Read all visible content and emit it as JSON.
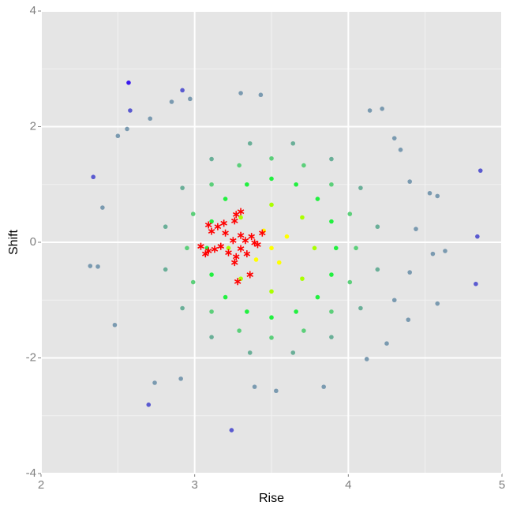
{
  "chart_data": {
    "type": "scatter",
    "xlabel": "Rise",
    "ylabel": "Shift",
    "xlim": [
      2,
      5
    ],
    "ylim": [
      -4,
      4
    ],
    "xticks": [
      2,
      3,
      4,
      5
    ],
    "yticks": [
      -4,
      -2,
      0,
      2,
      4
    ],
    "xminor": [
      2.5,
      3.5,
      4.5
    ],
    "yminor": [
      -3,
      -1,
      1,
      3
    ],
    "grid": true,
    "series": [
      {
        "color": "#7a9ab0",
        "marker": "circle",
        "x": [
          2.85,
          2.97,
          2.5,
          2.56,
          2.71,
          3.3,
          3.43,
          4.14,
          4.22,
          4.53,
          4.58,
          4.63,
          4.55,
          4.58,
          4.39,
          4.25,
          4.12,
          3.84,
          3.39,
          2.74,
          2.48,
          2.4,
          4.3,
          4.34,
          4.4,
          4.44,
          4.4,
          4.3,
          2.91,
          3.53,
          2.37,
          2.32
        ],
        "y": [
          2.43,
          2.48,
          1.84,
          1.96,
          2.14,
          2.58,
          2.55,
          2.28,
          2.31,
          0.85,
          0.8,
          -0.15,
          -0.2,
          -1.06,
          -1.34,
          -1.75,
          -2.02,
          -2.5,
          -2.5,
          -2.43,
          -1.43,
          0.6,
          1.8,
          1.6,
          1.05,
          0.23,
          -0.52,
          -1.0,
          -2.36,
          -2.57,
          -0.42,
          -0.41
        ]
      },
      {
        "color": "#5a5ad0",
        "marker": "circle",
        "x": [
          2.58,
          2.92,
          2.34,
          4.86,
          4.84,
          4.83,
          2.7,
          3.24
        ],
        "y": [
          2.28,
          2.63,
          1.13,
          1.24,
          0.1,
          -0.72,
          -2.81,
          -3.25
        ]
      },
      {
        "color": "#3a1aee",
        "marker": "circle",
        "x": [
          2.57
        ],
        "y": [
          2.76
        ]
      },
      {
        "color": "#6aaf98",
        "marker": "circle",
        "x": [
          4.19,
          4.08,
          3.89,
          3.64,
          3.36,
          3.11,
          2.92,
          2.81,
          2.81,
          2.92,
          3.11,
          3.36,
          3.64,
          3.89,
          4.08,
          4.19
        ],
        "y": [
          0.27,
          0.94,
          1.44,
          1.71,
          1.71,
          1.44,
          0.94,
          0.27,
          -0.47,
          -1.14,
          -1.64,
          -1.91,
          -1.91,
          -1.64,
          -1.14,
          -0.47
        ]
      },
      {
        "color": "#5ccf7a",
        "marker": "circle",
        "x": [
          4.05,
          4.01,
          3.89,
          3.71,
          3.5,
          3.29,
          3.11,
          2.99,
          2.95,
          2.99,
          3.11,
          3.29,
          3.5,
          3.71,
          3.89,
          4.01
        ],
        "y": [
          -0.1,
          0.49,
          1.0,
          1.33,
          1.45,
          1.33,
          1.0,
          0.49,
          -0.1,
          -0.69,
          -1.2,
          -1.53,
          -1.65,
          -1.53,
          -1.2,
          -0.69
        ]
      },
      {
        "color": "#22f040",
        "marker": "circle",
        "x": [
          3.92,
          3.89,
          3.8,
          3.66,
          3.5,
          3.34,
          3.2,
          3.11,
          3.08,
          3.11,
          3.2,
          3.34,
          3.5,
          3.66,
          3.8,
          3.89
        ],
        "y": [
          -0.1,
          0.36,
          0.75,
          1.0,
          1.1,
          1.0,
          0.75,
          0.36,
          -0.1,
          -0.56,
          -0.95,
          -1.2,
          -1.3,
          -1.2,
          -0.95,
          -0.56
        ]
      },
      {
        "color": "#aaff00",
        "marker": "circle",
        "x": [
          3.78,
          3.7,
          3.5,
          3.3,
          3.22,
          3.3,
          3.5,
          3.7
        ],
        "y": [
          -0.1,
          0.43,
          0.65,
          0.43,
          -0.1,
          -0.63,
          -0.85,
          -0.63
        ]
      },
      {
        "color": "#ffff00",
        "marker": "circle",
        "x": [
          3.5,
          3.6,
          3.4,
          3.55,
          3.45
        ],
        "y": [
          -0.1,
          0.1,
          -0.3,
          -0.35,
          0.2
        ]
      },
      {
        "color": "#ff0000",
        "marker": "star",
        "x": [
          3.3,
          3.27,
          3.26,
          3.19,
          3.15,
          3.09,
          3.11,
          3.2,
          3.3,
          3.37,
          3.44,
          3.25,
          3.33,
          3.39,
          3.17,
          3.09,
          3.07,
          3.22,
          3.3,
          3.27,
          3.26,
          3.36,
          3.28,
          3.04,
          3.13,
          3.34,
          3.41
        ],
        "y": [
          0.53,
          0.48,
          0.37,
          0.33,
          0.27,
          0.3,
          0.19,
          0.16,
          0.12,
          0.1,
          0.16,
          0.03,
          0.03,
          -0.01,
          -0.07,
          -0.15,
          -0.2,
          -0.18,
          -0.11,
          -0.25,
          -0.35,
          -0.56,
          -0.68,
          -0.07,
          -0.12,
          -0.2,
          -0.04
        ]
      }
    ]
  }
}
